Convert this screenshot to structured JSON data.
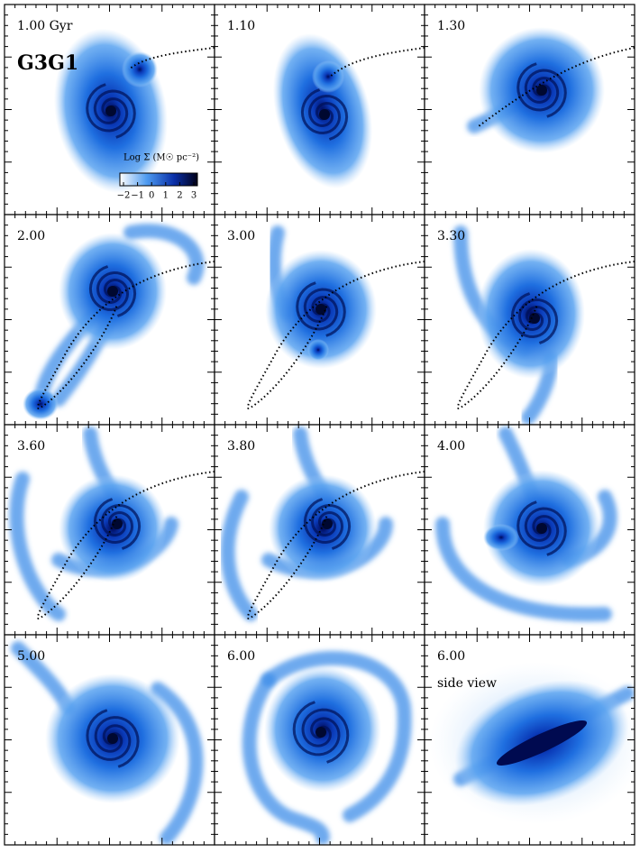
{
  "figure": {
    "label": "G3G1",
    "colorbar": {
      "title": "Log Σ (M☉ pc⁻²)",
      "ticks": [
        "−2",
        "−1",
        "0",
        "1",
        "2",
        "3"
      ]
    },
    "panels": [
      {
        "time": "1.00 Gyr"
      },
      {
        "time": "1.10"
      },
      {
        "time": "1.30"
      },
      {
        "time": "2.00"
      },
      {
        "time": "3.00"
      },
      {
        "time": "3.30"
      },
      {
        "time": "3.60"
      },
      {
        "time": "3.80"
      },
      {
        "time": "4.00"
      },
      {
        "time": "5.00"
      },
      {
        "time": "6.00"
      },
      {
        "time": "6.00",
        "note": "side view"
      }
    ]
  }
}
